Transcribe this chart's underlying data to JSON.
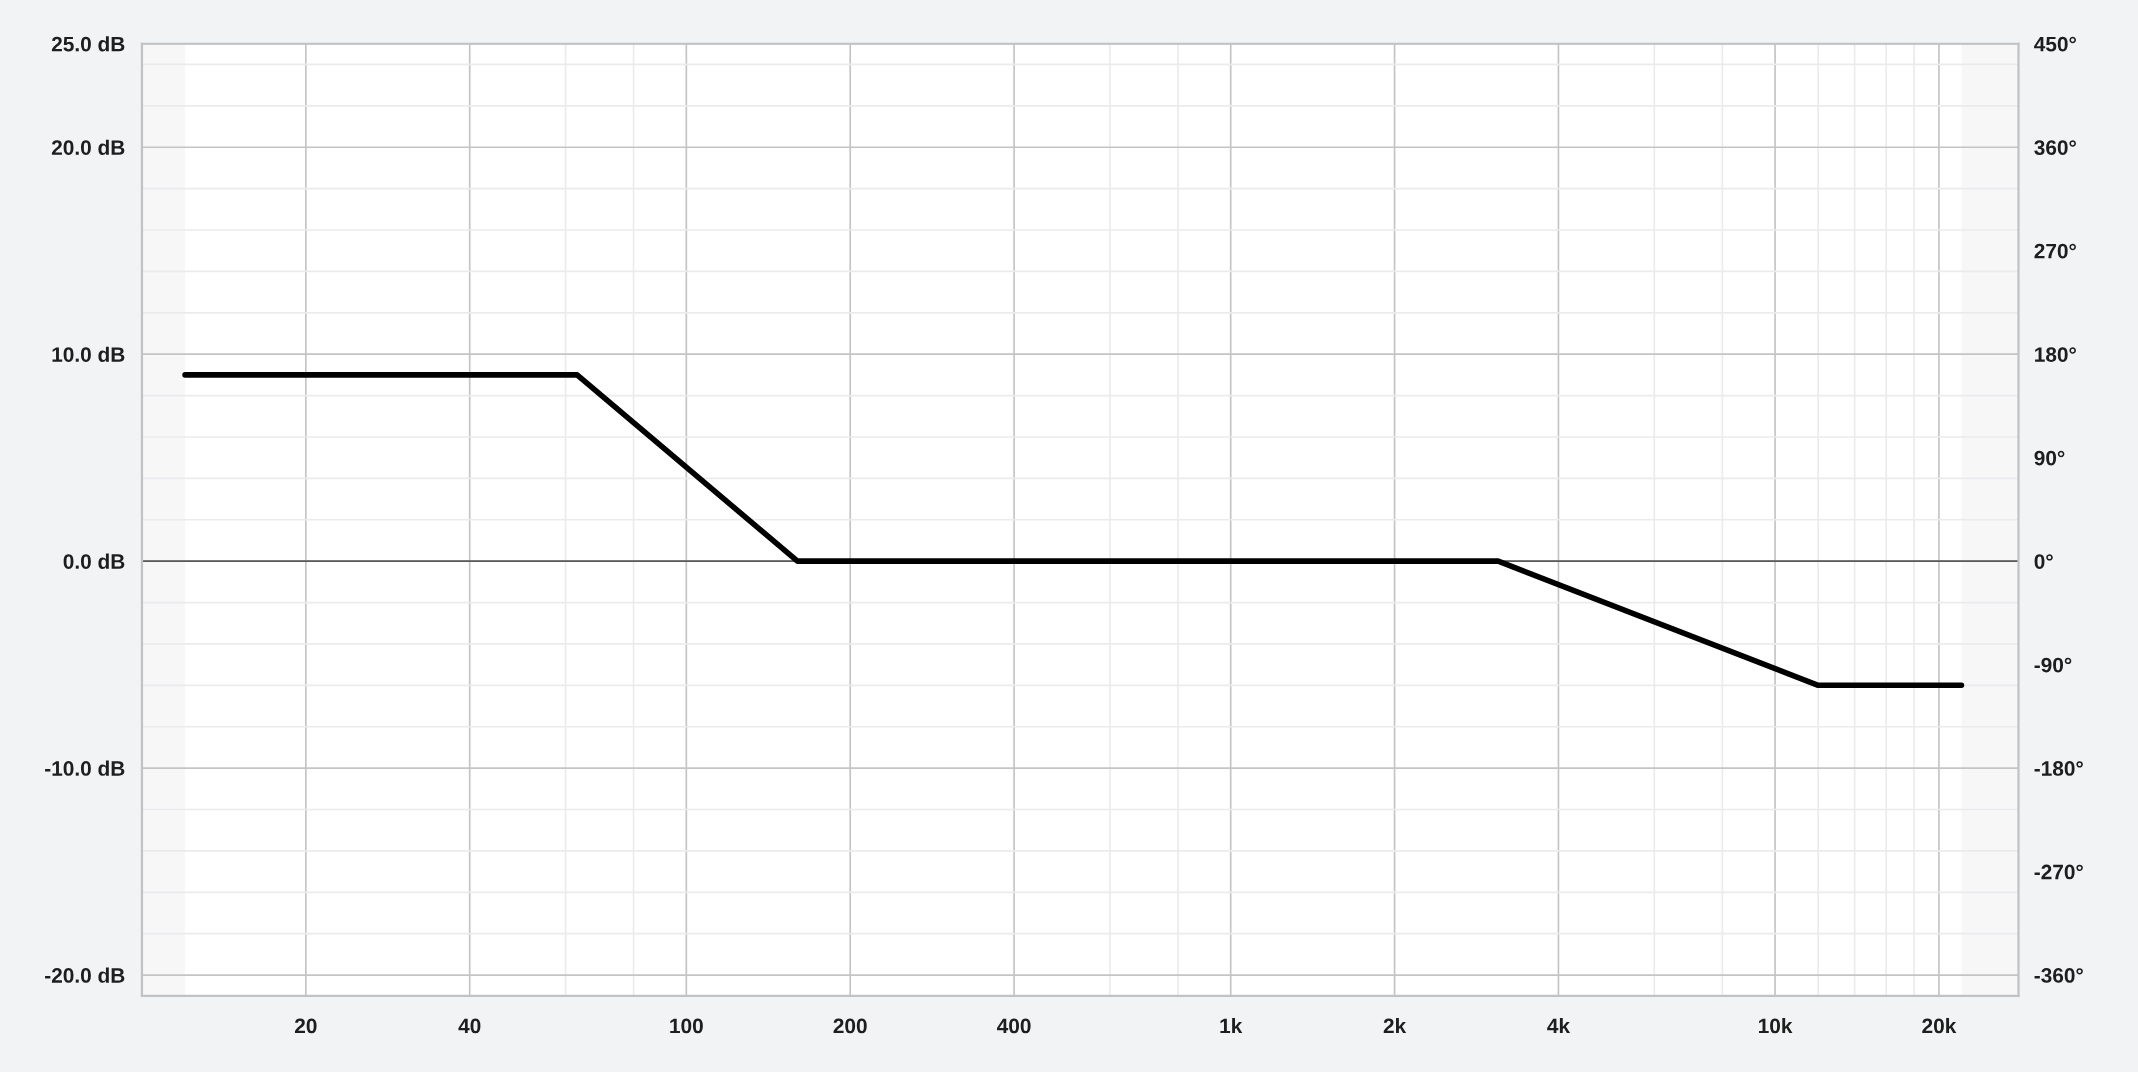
{
  "chart_data": {
    "type": "line",
    "log": "x",
    "x": [
      12,
      63,
      160,
      3100,
      12000,
      22000
    ],
    "series": [
      {
        "color": "#000000",
        "values": [
          9,
          9,
          0,
          0,
          -6,
          -6
        ]
      }
    ],
    "xlim": [
      10,
      28000
    ],
    "ylim": [
      -21,
      25
    ],
    "y2lim": [
      -378,
      450
    ],
    "xticks": [
      {
        "value": 20,
        "label": "20"
      },
      {
        "value": 40,
        "label": "40"
      },
      {
        "value": 60,
        "label": null
      },
      {
        "value": 80,
        "label": null
      },
      {
        "value": 100,
        "label": "100"
      },
      {
        "value": 200,
        "label": "200"
      },
      {
        "value": 400,
        "label": "400"
      },
      {
        "value": 600,
        "label": null
      },
      {
        "value": 800,
        "label": null
      },
      {
        "value": 1000,
        "label": "1k"
      },
      {
        "value": 2000,
        "label": "2k"
      },
      {
        "value": 4000,
        "label": "4k"
      },
      {
        "value": 6000,
        "label": null
      },
      {
        "value": 8000,
        "label": null
      },
      {
        "value": 10000,
        "label": "10k"
      },
      {
        "value": 12000,
        "label": null
      },
      {
        "value": 14000,
        "label": null
      },
      {
        "value": 16000,
        "label": null
      },
      {
        "value": 18000,
        "label": null
      },
      {
        "value": 20000,
        "label": "20k"
      }
    ],
    "yticks": [
      {
        "value": -20,
        "label": "-20.0 dB"
      },
      {
        "value": -18,
        "label": null
      },
      {
        "value": -16,
        "label": null
      },
      {
        "value": -14,
        "label": null
      },
      {
        "value": -12,
        "label": null
      },
      {
        "value": -10,
        "label": "-10.0 dB"
      },
      {
        "value": -8,
        "label": null
      },
      {
        "value": -6,
        "label": null
      },
      {
        "value": -4,
        "label": null
      },
      {
        "value": -2,
        "label": null
      },
      {
        "value": 0,
        "label": "0.0 dB"
      },
      {
        "value": 2,
        "label": null
      },
      {
        "value": 4,
        "label": null
      },
      {
        "value": 6,
        "label": null
      },
      {
        "value": 8,
        "label": null
      },
      {
        "value": 10,
        "label": "10.0 dB"
      },
      {
        "value": 12,
        "label": null
      },
      {
        "value": 14,
        "label": null
      },
      {
        "value": 16,
        "label": null
      },
      {
        "value": 18,
        "label": null
      },
      {
        "value": 20,
        "label": "20.0 dB"
      },
      {
        "value": 22,
        "label": null
      },
      {
        "value": 24,
        "label": null
      },
      {
        "value": 25,
        "label": "25.0 dB"
      }
    ],
    "y2ticks": [
      {
        "value": -360,
        "label": "-360°"
      },
      {
        "value": -270,
        "label": "-270°"
      },
      {
        "value": -180,
        "label": "-180°"
      },
      {
        "value": -90,
        "label": "-90°"
      },
      {
        "value": 0,
        "label": "0°"
      },
      {
        "value": 90,
        "label": "90°"
      },
      {
        "value": 180,
        "label": "180°"
      },
      {
        "value": 270,
        "label": "270°"
      },
      {
        "value": 360,
        "label": "360°"
      },
      {
        "value": 450,
        "label": "450°"
      }
    ],
    "grid": true,
    "ref_lines": [
      {
        "axis": "y",
        "value": 0,
        "color": "#5a5a5a"
      }
    ],
    "bands": [
      {
        "axis": "x",
        "from": 10,
        "to": 12,
        "color": "#f7f7f8"
      },
      {
        "axis": "x",
        "from": 22000,
        "to": 28000,
        "color": "#f7f7f8"
      }
    ]
  }
}
